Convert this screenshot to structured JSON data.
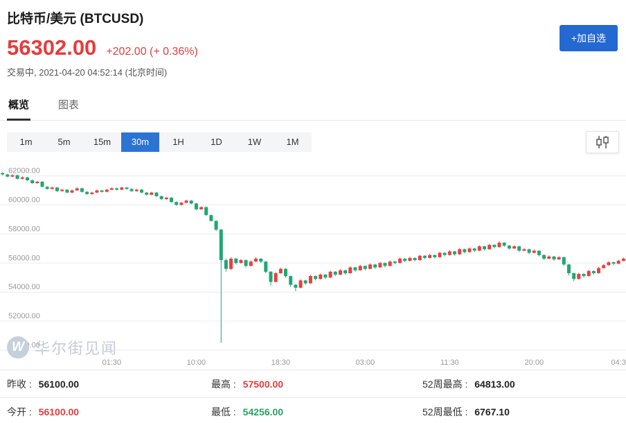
{
  "header": {
    "title": "比特币/美元 (BTCUSD)",
    "price": "56302.00",
    "change": "+202.00 (+ 0.36%)",
    "status": "交易中, 2021-04-20 04:52:14 (北京时间)",
    "add_button": "+加自选"
  },
  "tabs": {
    "overview": "概览",
    "chart": "图表"
  },
  "timeframes": [
    "1m",
    "5m",
    "15m",
    "30m",
    "1H",
    "1D",
    "1W",
    "1M"
  ],
  "active_timeframe": "30m",
  "watermark": {
    "logo": "W",
    "text": "华尔街见闻"
  },
  "colors": {
    "accent_blue": "#2468d2",
    "price_red": "#e53c3d",
    "value_green": "#27a163"
  },
  "stats": {
    "prev_close": {
      "label": "昨收 :",
      "value": "56100.00"
    },
    "open": {
      "label": "今开 :",
      "value": "56100.00"
    },
    "high": {
      "label": "最高 :",
      "value": "57500.00"
    },
    "low": {
      "label": "最低 :",
      "value": "54256.00"
    },
    "week52_high": {
      "label": "52周最高 :",
      "value": "64813.00"
    },
    "week52_low": {
      "label": "52周最低 :",
      "value": "6767.10"
    }
  },
  "chart_data": {
    "type": "candlestick",
    "symbol": "BTCUSD",
    "interval": "30m",
    "up_color": "#e8403d",
    "down_color": "#21a676",
    "grid_color": "#ececec",
    "axis_text_color": "#999999",
    "price_range": [
      49900,
      62700
    ],
    "y_ticks": [
      "62000.00",
      "60000.00",
      "58000.00",
      "56000.00",
      "54000.00",
      "52000.00",
      "50000.00"
    ],
    "y_tick_values": [
      62000,
      60000,
      58000,
      56000,
      54000,
      52000,
      50000
    ],
    "x_ticks": [
      {
        "index": 22,
        "label": "01:30"
      },
      {
        "index": 39,
        "label": "10:00"
      },
      {
        "index": 56,
        "label": "18:30"
      },
      {
        "index": 73,
        "label": "03:00"
      },
      {
        "index": 90,
        "label": "11:30"
      },
      {
        "index": 107,
        "label": "20:00"
      },
      {
        "index": 124,
        "label": "04:3"
      }
    ],
    "candles": [
      [
        62200,
        62260,
        62040,
        62100
      ],
      [
        62100,
        62150,
        61900,
        61950
      ],
      [
        61950,
        62110,
        61910,
        62050
      ],
      [
        62050,
        62090,
        61750,
        61800
      ],
      [
        61800,
        61960,
        61760,
        61900
      ],
      [
        61900,
        61940,
        61650,
        61700
      ],
      [
        61700,
        61750,
        61450,
        61500
      ],
      [
        61500,
        61660,
        61460,
        61600
      ],
      [
        61600,
        61640,
        61200,
        61250
      ],
      [
        61250,
        61300,
        61050,
        61100
      ],
      [
        61100,
        61260,
        61060,
        61200
      ],
      [
        61200,
        61240,
        60900,
        60950
      ],
      [
        60950,
        61110,
        60910,
        61050
      ],
      [
        61050,
        61090,
        60800,
        60850
      ],
      [
        60850,
        61060,
        60810,
        61000
      ],
      [
        61000,
        61210,
        60960,
        61150
      ],
      [
        61150,
        61190,
        60850,
        60900
      ],
      [
        60900,
        60950,
        60700,
        60750
      ],
      [
        60750,
        60910,
        60710,
        60850
      ],
      [
        60850,
        61060,
        60810,
        61000
      ],
      [
        61000,
        61040,
        60850,
        60900
      ],
      [
        60900,
        61110,
        60860,
        61050
      ],
      [
        61050,
        61210,
        61010,
        61150
      ],
      [
        61150,
        61190,
        61000,
        61050
      ],
      [
        61050,
        61260,
        61010,
        61200
      ],
      [
        61200,
        61240,
        61050,
        61100
      ],
      [
        61100,
        61140,
        60900,
        60950
      ],
      [
        60950,
        61110,
        60910,
        61050
      ],
      [
        61050,
        61090,
        60800,
        60850
      ],
      [
        60850,
        60890,
        60650,
        60700
      ],
      [
        60700,
        60910,
        60660,
        60850
      ],
      [
        60850,
        60890,
        60550,
        60600
      ],
      [
        60600,
        60640,
        60350,
        60400
      ],
      [
        60400,
        60560,
        60360,
        60500
      ],
      [
        60500,
        60540,
        60150,
        60200
      ],
      [
        60200,
        60240,
        59950,
        60000
      ],
      [
        60000,
        60210,
        59960,
        60150
      ],
      [
        60150,
        60360,
        60110,
        60300
      ],
      [
        60300,
        60340,
        60050,
        60100
      ],
      [
        60100,
        60140,
        59650,
        59700
      ],
      [
        59700,
        59910,
        59660,
        59850
      ],
      [
        59850,
        59890,
        59250,
        59300
      ],
      [
        59300,
        59340,
        58850,
        58900
      ],
      [
        58900,
        58950,
        58200,
        58300
      ],
      [
        58300,
        58350,
        50500,
        56200
      ],
      [
        56200,
        56300,
        55400,
        55600
      ],
      [
        55600,
        56400,
        55500,
        56300
      ],
      [
        56300,
        56350,
        55900,
        56000
      ],
      [
        56000,
        56280,
        55950,
        56200
      ],
      [
        56200,
        56240,
        55700,
        55800
      ],
      [
        55800,
        56180,
        55760,
        56100
      ],
      [
        56100,
        56380,
        56060,
        56300
      ],
      [
        56300,
        56340,
        56000,
        56100
      ],
      [
        56100,
        56140,
        55300,
        55400
      ],
      [
        55400,
        55440,
        54450,
        54700
      ],
      [
        54700,
        55380,
        54650,
        55300
      ],
      [
        55300,
        55680,
        55260,
        55600
      ],
      [
        55600,
        55640,
        55000,
        55100
      ],
      [
        55100,
        55140,
        54350,
        54500
      ],
      [
        54500,
        54550,
        54050,
        54300
      ],
      [
        54300,
        54880,
        54256,
        54800
      ],
      [
        54800,
        54840,
        54500,
        54600
      ],
      [
        54600,
        55180,
        54560,
        55100
      ],
      [
        55100,
        55140,
        54800,
        54900
      ],
      [
        54900,
        55280,
        54860,
        55200
      ],
      [
        55200,
        55240,
        54900,
        55000
      ],
      [
        55000,
        55480,
        54960,
        55400
      ],
      [
        55400,
        55440,
        55100,
        55200
      ],
      [
        55200,
        55580,
        55160,
        55500
      ],
      [
        55500,
        55540,
        55200,
        55300
      ],
      [
        55300,
        55780,
        55260,
        55700
      ],
      [
        55700,
        55740,
        55400,
        55500
      ],
      [
        55500,
        55880,
        55460,
        55800
      ],
      [
        55800,
        55840,
        55500,
        55600
      ],
      [
        55600,
        55980,
        55560,
        55900
      ],
      [
        55900,
        55940,
        55600,
        55700
      ],
      [
        55700,
        56080,
        55660,
        56000
      ],
      [
        56000,
        56040,
        55700,
        55800
      ],
      [
        55800,
        56180,
        55760,
        56100
      ],
      [
        56100,
        56150,
        55920,
        56000
      ],
      [
        56000,
        56380,
        55960,
        56300
      ],
      [
        56300,
        56340,
        56060,
        56150
      ],
      [
        56150,
        56430,
        56110,
        56350
      ],
      [
        56350,
        56390,
        56110,
        56200
      ],
      [
        56200,
        56580,
        56160,
        56500
      ],
      [
        56500,
        56540,
        56260,
        56350
      ],
      [
        56350,
        56630,
        56310,
        56550
      ],
      [
        56550,
        56590,
        56310,
        56400
      ],
      [
        56400,
        56780,
        56360,
        56700
      ],
      [
        56700,
        56740,
        56460,
        56550
      ],
      [
        56550,
        56880,
        56510,
        56800
      ],
      [
        56800,
        56840,
        56510,
        56600
      ],
      [
        56600,
        57030,
        56560,
        56950
      ],
      [
        56950,
        56990,
        56660,
        56750
      ],
      [
        56750,
        57080,
        56710,
        57000
      ],
      [
        57000,
        57040,
        56760,
        56850
      ],
      [
        56850,
        57230,
        56810,
        57150
      ],
      [
        57150,
        57190,
        56860,
        56950
      ],
      [
        56950,
        57330,
        56910,
        57250
      ],
      [
        57250,
        57290,
        57010,
        57100
      ],
      [
        57100,
        57500,
        57060,
        57400
      ],
      [
        57400,
        57440,
        57110,
        57200
      ],
      [
        57200,
        57240,
        56910,
        57000
      ],
      [
        57000,
        57230,
        56960,
        57150
      ],
      [
        57150,
        57190,
        56760,
        56850
      ],
      [
        56850,
        57030,
        56810,
        56950
      ],
      [
        56950,
        56990,
        56610,
        56700
      ],
      [
        56700,
        56930,
        56660,
        56850
      ],
      [
        56850,
        56890,
        56460,
        56550
      ],
      [
        56550,
        56590,
        56210,
        56300
      ],
      [
        56300,
        56530,
        56260,
        56450
      ],
      [
        56450,
        56490,
        56160,
        56250
      ],
      [
        56250,
        56480,
        56210,
        56400
      ],
      [
        56400,
        56440,
        55800,
        55900
      ],
      [
        55900,
        55940,
        55150,
        55300
      ],
      [
        55300,
        55340,
        54750,
        54900
      ],
      [
        54900,
        55330,
        54850,
        55250
      ],
      [
        55250,
        55290,
        55000,
        55100
      ],
      [
        55100,
        55530,
        55060,
        55450
      ],
      [
        55450,
        55490,
        55200,
        55300
      ],
      [
        55300,
        55730,
        55260,
        55650
      ],
      [
        55650,
        55930,
        55610,
        55850
      ],
      [
        55850,
        56130,
        55810,
        56050
      ],
      [
        56050,
        56090,
        55850,
        55950
      ],
      [
        55950,
        56230,
        55910,
        56150
      ],
      [
        56150,
        56380,
        56110,
        56302
      ]
    ]
  }
}
